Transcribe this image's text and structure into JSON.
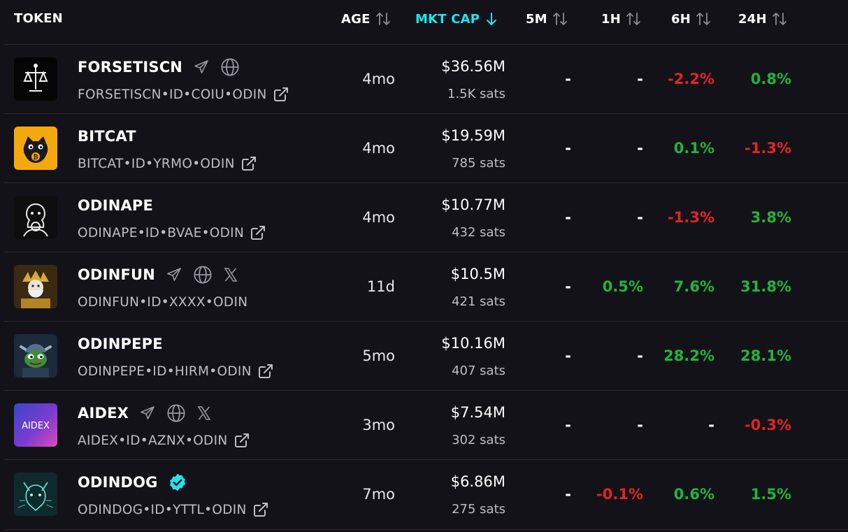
{
  "header": {
    "token": "TOKEN",
    "age": "AGE",
    "mkt_cap": "MKT CAP",
    "m5": "5M",
    "h1": "1H",
    "h6": "6H",
    "h24": "24H",
    "active_sort_color": "#1de4f0"
  },
  "colors": {
    "positive": "#1fb53c",
    "negative": "#e02424",
    "background": "#141219"
  },
  "rows": [
    {
      "name": "FORSETISCN",
      "id": "FORSETISCN•ID•COIU•ODIN",
      "age": "4mo",
      "mcap": "$36.56M",
      "sats": "1.5K sats",
      "m5": "-",
      "h1": "-",
      "h6": "-2.2%",
      "h24": "0.8%",
      "icons": [
        "telegram-icon",
        "globe-icon"
      ],
      "external_link": true
    },
    {
      "name": "BITCAT",
      "id": "BITCAT•ID•YRMO•ODIN",
      "age": "4mo",
      "mcap": "$19.59M",
      "sats": "785 sats",
      "m5": "-",
      "h1": "-",
      "h6": "0.1%",
      "h24": "-1.3%",
      "icons": [],
      "external_link": true
    },
    {
      "name": "ODINAPE",
      "id": "ODINAPE•ID•BVAE•ODIN",
      "age": "4mo",
      "mcap": "$10.77M",
      "sats": "432 sats",
      "m5": "-",
      "h1": "-",
      "h6": "-1.3%",
      "h24": "3.8%",
      "icons": [],
      "external_link": true
    },
    {
      "name": "ODINFUN",
      "id": "ODINFUN•ID•XXXX•ODIN",
      "age": "11d",
      "mcap": "$10.5M",
      "sats": "421 sats",
      "m5": "-",
      "h1": "0.5%",
      "h6": "7.6%",
      "h24": "31.8%",
      "icons": [
        "telegram-icon",
        "globe-icon",
        "x-icon"
      ],
      "external_link": false
    },
    {
      "name": "ODINPEPE",
      "id": "ODINPEPE•ID•HIRM•ODIN",
      "age": "5mo",
      "mcap": "$10.16M",
      "sats": "407 sats",
      "m5": "-",
      "h1": "-",
      "h6": "28.2%",
      "h24": "28.1%",
      "icons": [],
      "external_link": true
    },
    {
      "name": "AIDEX",
      "id": "AIDEX•ID•AZNX•ODIN",
      "age": "3mo",
      "mcap": "$7.54M",
      "sats": "302 sats",
      "m5": "-",
      "h1": "-",
      "h6": "-",
      "h24": "-0.3%",
      "icons": [
        "telegram-icon",
        "globe-icon",
        "x-icon"
      ],
      "external_link": true,
      "avatar_text": "AIDEX"
    },
    {
      "name": "ODINDOG",
      "id": "ODINDOG•ID•YTTL•ODIN",
      "age": "7mo",
      "mcap": "$6.86M",
      "sats": "275 sats",
      "m5": "-",
      "h1": "-0.1%",
      "h6": "0.6%",
      "h24": "1.5%",
      "icons": [
        "verified-badge-icon"
      ],
      "external_link": true
    }
  ]
}
